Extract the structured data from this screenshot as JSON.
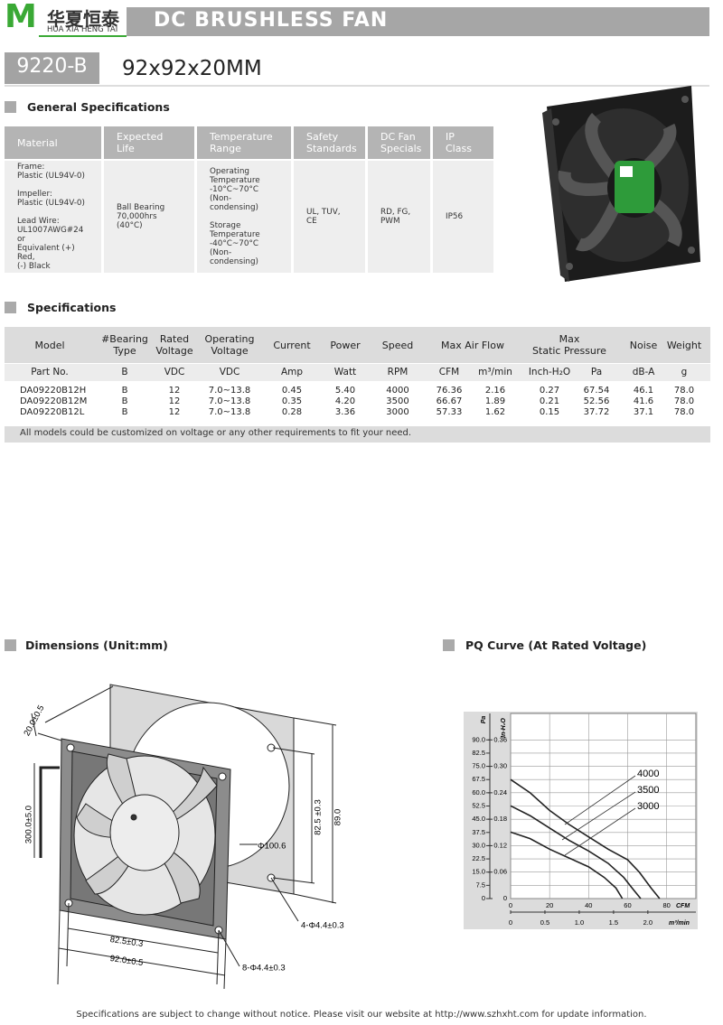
{
  "header": {
    "logo_mark": "M",
    "brand_cn": "华夏恒泰",
    "brand_en": "HUA XIA HENG TAI",
    "title": "DC BRUSHLESS FAN"
  },
  "model": {
    "code": "9220-B",
    "size": "92x92x20MM"
  },
  "general": {
    "heading": "General Specifications",
    "columns": [
      "Material",
      "Expected Life",
      "Temperature\nRange",
      "Safety\nStandards",
      "DC Fan\nSpecials",
      "IP Class"
    ],
    "cells": [
      "Frame:\nPlastic (UL94V-0)\n\nImpeller:\nPlastic (UL94V-0)\n\nLead Wire:\nUL1007AWG#24 or\nEquivalent (+) Red,\n(-) Black",
      "Ball Bearing\n70,000hrs (40°C)",
      "Operating\nTemperature\n-10°C~70°C\n (Non-condensing)\n\nStorage\nTemperature\n-40°C~70°C\n(Non-condensing)",
      "UL, TUV,\nCE",
      "RD, FG,\nPWM",
      "IP56"
    ]
  },
  "specs": {
    "heading": "Specifications",
    "header_top": [
      "Model",
      "#Bearing\nType",
      "Rated\nVoltage",
      "Operating\nVoltage",
      "Current",
      "Power",
      "Speed",
      "Max  Air  Flow",
      "Max\nStatic  Pressure",
      "Noise",
      "Weight"
    ],
    "header_units": [
      "Part No.",
      "B",
      "VDC",
      "VDC",
      "Amp",
      "Watt",
      "RPM",
      "CFM",
      "m³/min",
      "Inch-H₂O",
      "Pa",
      "dB-A",
      "g"
    ],
    "rows": [
      [
        "DA09220B12H",
        "B",
        "12",
        "7.0~13.8",
        "0.45",
        "5.40",
        "4000",
        "76.36",
        "2.16",
        "0.27",
        "67.54",
        "46.1",
        "78.0"
      ],
      [
        "DA09220B12M",
        "B",
        "12",
        "7.0~13.8",
        "0.35",
        "4.20",
        "3500",
        "66.67",
        "1.89",
        "0.21",
        "52.56",
        "41.6",
        "78.0"
      ],
      [
        "DA09220B12L",
        "B",
        "12",
        "7.0~13.8",
        "0.28",
        "3.36",
        "3000",
        "57.33",
        "1.62",
        "0.15",
        "37.72",
        "37.1",
        "78.0"
      ]
    ],
    "note": "All models could be customized on voltage or any other requirements to fit your need."
  },
  "dimensions": {
    "heading": "Dimensions (Unit:mm)",
    "labels": [
      "20.0±0.5",
      "300.0±5.0",
      "Φ100.6",
      "82.5 ±0.3",
      "89.0",
      "4-Φ4.4±0.3",
      "82.5±0.3",
      "92.0±0.5",
      "8-Φ4.4±0.3"
    ]
  },
  "pq_curve": {
    "type": "line",
    "title": "PQ Curve (At Rated Voltage)",
    "y_label": "Pa",
    "y2_label": "In-H₂O",
    "x_label": "CFM",
    "x2_label": "m³/min",
    "xlim": [
      0,
      95
    ],
    "xticks": [
      0,
      20,
      40,
      60,
      80
    ],
    "x2lim": [
      0,
      2.7
    ],
    "x2ticks": [
      0,
      0.5,
      {
        "value": 1.0,
        "label": "1.0"
      },
      1.5,
      {
        "value": 2.0,
        "label": "2.0"
      }
    ],
    "ylim": [
      0,
      105
    ],
    "yticks": [
      0,
      7.5,
      {
        "value": 15,
        "label": "15.0"
      },
      22.5,
      {
        "value": 30,
        "label": "30.0"
      },
      37.5,
      {
        "value": 45,
        "label": "45.0"
      },
      52.5,
      {
        "value": 60,
        "label": "60.0"
      },
      67.5,
      {
        "value": 75,
        "label": "75.0"
      },
      82.5,
      {
        "value": 90,
        "label": "90.0"
      }
    ],
    "y2lim": [
      0,
      0.42
    ],
    "y2ticks": [
      0,
      0.06,
      0.12,
      0.18,
      0.24,
      {
        "value": 0.3,
        "label": "0.30"
      },
      0.36
    ],
    "grid": true,
    "color": "#222222",
    "series": [
      {
        "name": "4000",
        "x": [
          0,
          10,
          20,
          30,
          40,
          50,
          60,
          66,
          72,
          76.4
        ],
        "values": [
          67.5,
          60,
          50,
          42,
          35,
          28,
          22,
          15,
          6,
          0
        ]
      },
      {
        "name": "3500",
        "x": [
          0,
          10,
          20,
          30,
          40,
          50,
          58,
          63,
          66.7
        ],
        "values": [
          52.6,
          47,
          40,
          33,
          27,
          20,
          12,
          5,
          0
        ]
      },
      {
        "name": "3000",
        "x": [
          0,
          10,
          20,
          30,
          40,
          48,
          54,
          57.3
        ],
        "values": [
          37.7,
          34,
          28,
          23,
          18,
          12,
          6,
          0
        ]
      }
    ]
  },
  "footer": "Specifications are subject to change without notice. Please visit our website at http://www.szhxht.com for update information."
}
